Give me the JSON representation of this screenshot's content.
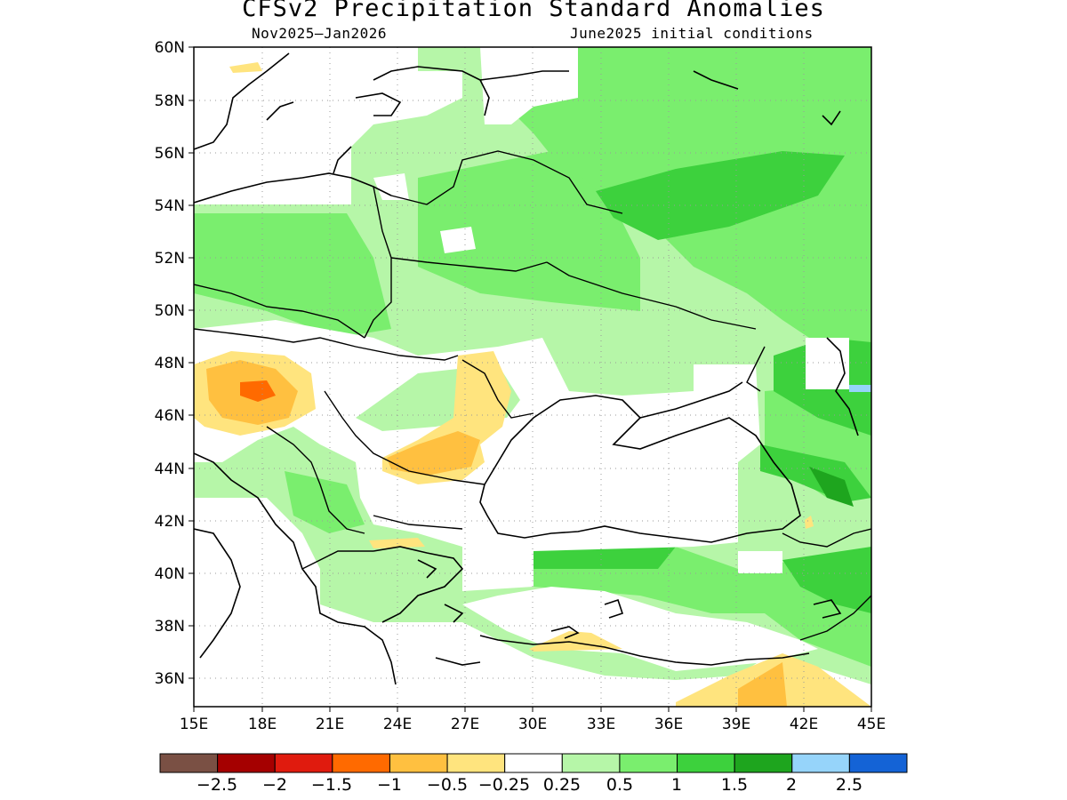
{
  "title": "CFSv2 Precipitation Standard Anomalies",
  "subtitle_left": "Nov2025–Jan2026",
  "subtitle_right": "June2025 initial conditions",
  "lat_labels": [
    "60N",
    "58N",
    "56N",
    "54N",
    "52N",
    "50N",
    "48N",
    "46N",
    "44N",
    "42N",
    "40N",
    "38N",
    "36N"
  ],
  "lon_labels": [
    "15E",
    "18E",
    "21E",
    "24E",
    "27E",
    "30E",
    "33E",
    "36E",
    "39E",
    "42E",
    "45E"
  ],
  "colorbar": {
    "colors": [
      "#7a5044",
      "#a50000",
      "#e01b0e",
      "#ff6a00",
      "#ffc040",
      "#ffe47e",
      "#ffffff",
      "#b6f6a8",
      "#7aee6e",
      "#3dd13d",
      "#1ea51e",
      "#96d4fa",
      "#1463d6"
    ],
    "labels": [
      "−2.5",
      "−2",
      "−1.5",
      "−1",
      "−0.5",
      "−0.25",
      "0.25",
      "0.5",
      "1",
      "1.5",
      "2",
      "2.5"
    ]
  },
  "legend_colors": {
    "light_green": "#b6f6a8",
    "green": "#7aee6e",
    "mid_green": "#3dd13d",
    "dark_green": "#1ea51e",
    "light_orange": "#ffe47e",
    "orange": "#ffc040",
    "dark_orange": "#ff6a00",
    "light_blue": "#96d4fa"
  }
}
